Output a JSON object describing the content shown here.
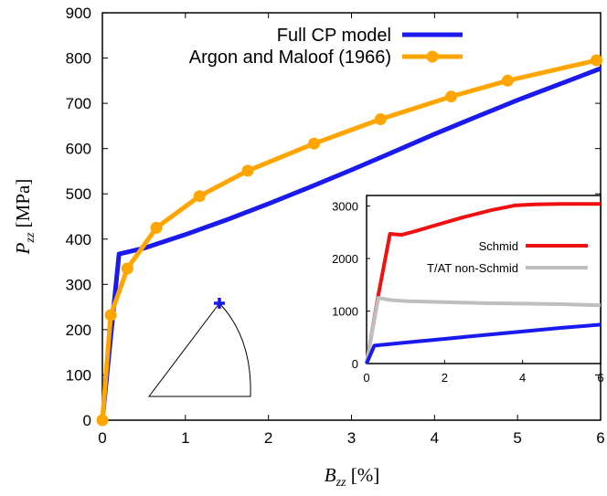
{
  "colors": {
    "blue": "#1a1aee",
    "orange": "#ffa500",
    "red": "#ee1111",
    "gray": "#bfbfbf",
    "axis": "#000000"
  },
  "chart_data": [
    {
      "type": "line",
      "role": "main",
      "xlabel": {
        "symbol": "B",
        "sub": "zz",
        "unit": " [%]"
      },
      "ylabel": {
        "symbol": "P",
        "sub": "zz",
        "unit": " [MPa]"
      },
      "xlim": [
        0,
        6
      ],
      "ylim": [
        0,
        900
      ],
      "xticks": [
        "0",
        "1",
        "2",
        "3",
        "4",
        "5",
        "6"
      ],
      "yticks": [
        "0",
        "100",
        "200",
        "300",
        "400",
        "500",
        "600",
        "700",
        "800",
        "900"
      ],
      "legend_position": "top-right",
      "grid": false,
      "series": [
        {
          "name": "Full CP model",
          "color": "#1a1aee",
          "marker": "none",
          "x": [
            0,
            0.2,
            0.5,
            1.0,
            1.5,
            2.0,
            2.5,
            3.0,
            3.5,
            4.0,
            4.5,
            5.0,
            5.5,
            6.0
          ],
          "y": [
            0,
            367,
            380,
            410,
            443,
            478,
            515,
            553,
            592,
            632,
            670,
            707,
            742,
            777
          ]
        },
        {
          "name": "Argon and Maloof (1966)",
          "color": "#ffa500",
          "marker": "circle",
          "x": [
            0,
            0.1,
            0.3,
            0.65,
            1.17,
            1.75,
            2.55,
            3.35,
            4.2,
            4.88,
            5.95
          ],
          "y": [
            0,
            232,
            335,
            425,
            495,
            551,
            611,
            665,
            715,
            750,
            795
          ]
        }
      ]
    },
    {
      "type": "line",
      "role": "inset",
      "legend_position": "right",
      "xlim": [
        0,
        6
      ],
      "ylim": [
        0,
        3200
      ],
      "xticks": [
        "0",
        "2",
        "4",
        "6"
      ],
      "yticks": [
        "0",
        "1000",
        "2000",
        "3000"
      ],
      "grid": false,
      "series": [
        {
          "name": "Schmid",
          "color": "#ee1111",
          "x": [
            0,
            0.3,
            0.6,
            0.9,
            1.2,
            1.8,
            2.5,
            3.2,
            3.8,
            4.3,
            5.0,
            6.0
          ],
          "y": [
            0,
            1300,
            2470,
            2450,
            2510,
            2640,
            2790,
            2920,
            3010,
            3030,
            3040,
            3040
          ]
        },
        {
          "name": "T/AT non-Schmid",
          "color": "#bfbfbf",
          "x": [
            0,
            0.3,
            0.6,
            1.0,
            2.0,
            3.0,
            4.0,
            5.0,
            6.0
          ],
          "y": [
            0,
            1250,
            1210,
            1190,
            1170,
            1150,
            1140,
            1130,
            1110
          ]
        },
        {
          "color": "#1a1aee",
          "x": [
            0,
            0.2,
            1.0,
            2.0,
            3.0,
            4.0,
            5.0,
            6.0
          ],
          "y": [
            0,
            340,
            400,
            470,
            540,
            610,
            680,
            740
          ]
        }
      ]
    }
  ]
}
